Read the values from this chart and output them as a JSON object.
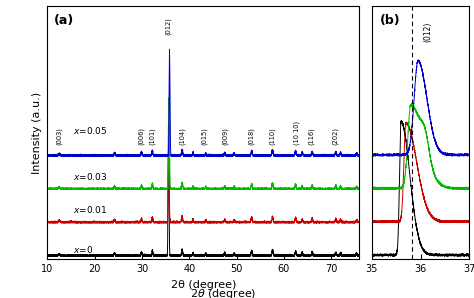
{
  "colors": {
    "black": "#000000",
    "red": "#cc0000",
    "green": "#00bb00",
    "blue": "#0000cc"
  },
  "panel_a": {
    "xmin": 10,
    "xmax": 76,
    "xlabel": "2θ (degree)",
    "ylabel": "Intensity (a.u.)"
  },
  "panel_b": {
    "xmin": 35,
    "xmax": 37,
    "dashed_line_x": 35.82
  },
  "offsets": [
    0.0,
    0.22,
    0.44,
    0.66
  ],
  "peak_labels_a": [
    [
      "(003)",
      12.5
    ],
    [
      "(006)",
      29.9
    ],
    [
      "(101)",
      32.2
    ],
    [
      "(012)",
      35.6
    ],
    [
      "(104)",
      38.5
    ],
    [
      "(015)",
      43.2
    ],
    [
      "(009)",
      47.5
    ],
    [
      "(018)",
      53.0
    ],
    [
      "(110)",
      57.5
    ],
    [
      "(10 10)",
      62.8
    ],
    [
      "(116)",
      65.8
    ],
    [
      "(202)",
      70.8
    ]
  ]
}
